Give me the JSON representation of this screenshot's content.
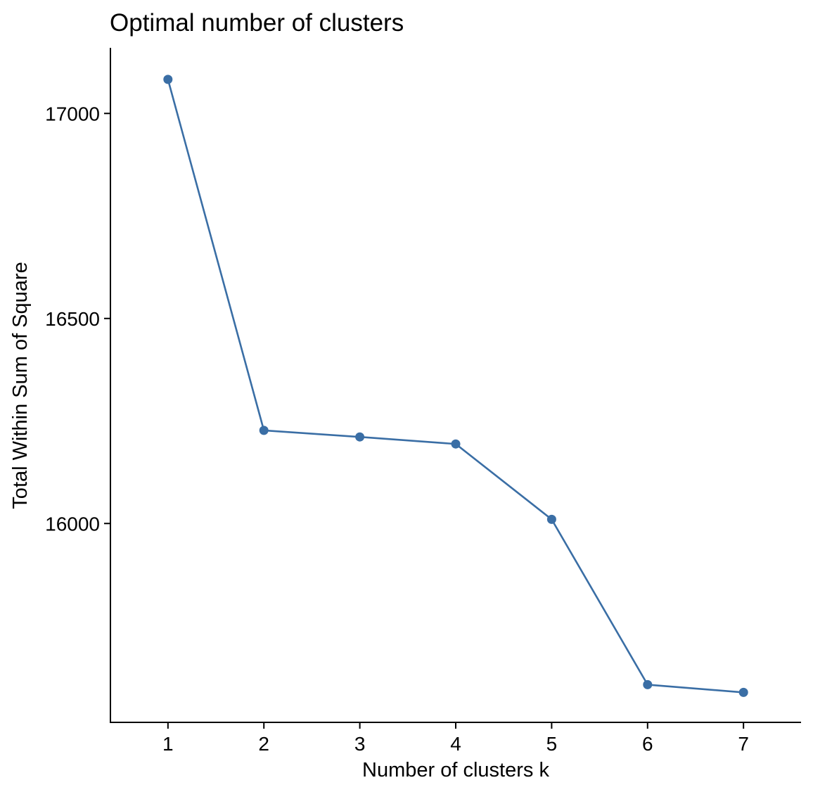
{
  "chart_data": {
    "type": "line",
    "title": "Optimal number of clusters",
    "xlabel": "Number of clusters k",
    "ylabel": "Total Within Sum of Square",
    "x": [
      1,
      2,
      3,
      4,
      5,
      6,
      7
    ],
    "x_tick_labels": [
      "1",
      "2",
      "3",
      "4",
      "5",
      "6",
      "7"
    ],
    "y_ticks": [
      16000,
      16500,
      17000
    ],
    "y_tick_labels": [
      "16000",
      "16500",
      "17000"
    ],
    "series": [
      {
        "values": [
          17083,
          16227,
          16211,
          16194,
          16010,
          15607,
          15588
        ],
        "color": "#3a6ea5"
      }
    ],
    "xlim": [
      0.4,
      7.6
    ],
    "ylim": [
      15515,
      17160
    ],
    "grid": false,
    "legend": "none"
  }
}
